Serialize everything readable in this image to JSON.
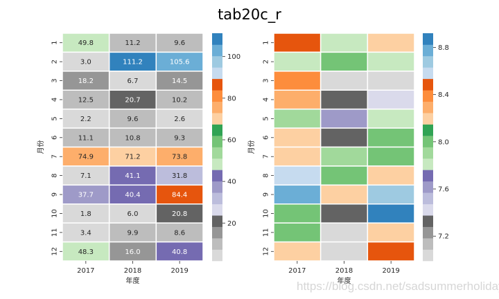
{
  "title": "tab20c_r",
  "watermark": "https://blog.csdn.net/sadsummerholiday",
  "palette_tab20c_r": [
    "#d9d9d9",
    "#bdbdbd",
    "#969696",
    "#636363",
    "#dadaeb",
    "#bcbddc",
    "#9e9ac8",
    "#756bb1",
    "#c7e9c0",
    "#a1d99b",
    "#74c476",
    "#31a354",
    "#fdd0a2",
    "#fdae6b",
    "#fd8d3c",
    "#e6550d",
    "#c6dbef",
    "#9ecae1",
    "#6baed6",
    "#3182bd"
  ],
  "chart_data": [
    {
      "type": "heatmap",
      "name": "annotated",
      "title": "",
      "xlabel": "年度",
      "ylabel": "月份",
      "x_categories": [
        "2017",
        "2018",
        "2019"
      ],
      "y_categories": [
        "1",
        "2",
        "3",
        "4",
        "5",
        "6",
        "7",
        "8",
        "9",
        "10",
        "11",
        "12"
      ],
      "values": [
        [
          49.8,
          11.2,
          9.6
        ],
        [
          3.0,
          111.2,
          105.6
        ],
        [
          18.2,
          6.7,
          14.5
        ],
        [
          12.5,
          20.7,
          10.2
        ],
        [
          2.2,
          9.6,
          2.6
        ],
        [
          11.1,
          10.8,
          9.3
        ],
        [
          74.9,
          71.2,
          73.8
        ],
        [
          7.1,
          41.1,
          31.8
        ],
        [
          37.7,
          40.4,
          84.4
        ],
        [
          1.8,
          6.0,
          20.8
        ],
        [
          3.4,
          9.9,
          8.6
        ],
        [
          48.3,
          16.0,
          40.8
        ]
      ],
      "annot": true,
      "fmt": ".1f",
      "colormap": "tab20c_r",
      "vmin": 1.8,
      "vmax": 111.2,
      "colorbar_ticks": [
        20,
        40,
        60,
        80,
        100
      ],
      "colorbar_tick_labels": [
        "20",
        "40",
        "60",
        "80",
        "100"
      ]
    },
    {
      "type": "heatmap",
      "name": "log-scaled",
      "title": "",
      "xlabel": "年度",
      "ylabel": "月份",
      "x_categories": [
        "2017",
        "2018",
        "2019"
      ],
      "y_categories": [
        "1",
        "2",
        "3",
        "4",
        "5",
        "6",
        "7",
        "8",
        "9",
        "10",
        "11",
        "12"
      ],
      "values": [
        [
          8.45,
          7.85,
          8.2
        ],
        [
          7.85,
          8.05,
          7.85
        ],
        [
          8.35,
          7.0,
          7.0
        ],
        [
          8.3,
          7.3,
          7.4
        ],
        [
          7.95,
          7.6,
          7.85
        ],
        [
          8.2,
          7.3,
          8.05
        ],
        [
          8.2,
          7.95,
          8.05
        ],
        [
          8.55,
          8.05,
          8.2
        ],
        [
          8.75,
          8.2,
          8.65
        ],
        [
          8.05,
          7.3,
          8.85
        ],
        [
          8.05,
          7.0,
          8.2
        ],
        [
          8.15,
          7.0,
          8.45
        ]
      ],
      "annot": false,
      "colormap": "tab20c_r",
      "vmin": 6.99,
      "vmax": 8.92,
      "colorbar_ticks": [
        7.2,
        7.6,
        8.0,
        8.4,
        8.8
      ],
      "colorbar_tick_labels": [
        "7.2",
        "7.6",
        "8.0",
        "8.4",
        "8.8"
      ]
    }
  ]
}
